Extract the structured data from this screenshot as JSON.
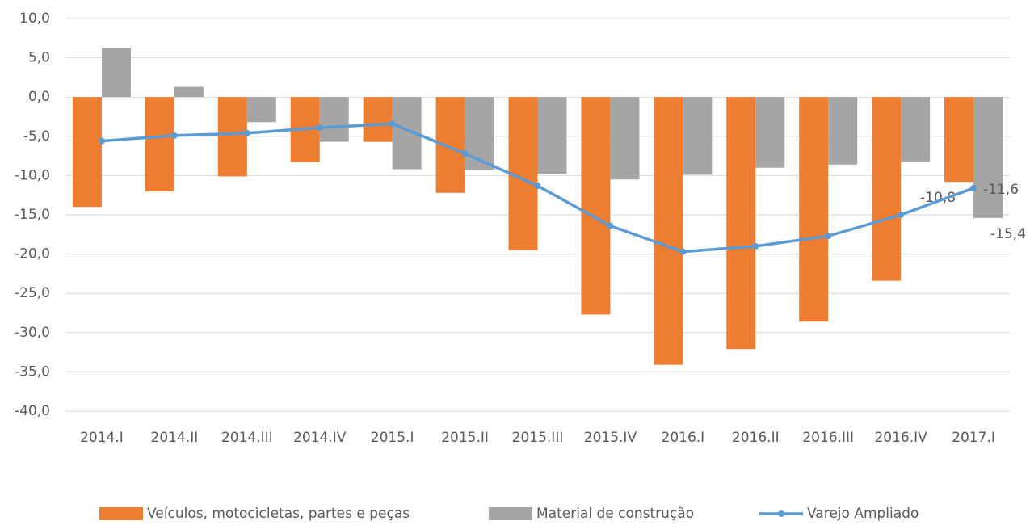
{
  "chart_data": {
    "type": "bar_line",
    "categories": [
      "2014.I",
      "2014.II",
      "2014.III",
      "2014.IV",
      "2015.I",
      "2015.II",
      "2015.III",
      "2015.IV",
      "2016.I",
      "2016.II",
      "2016.III",
      "2016.IV",
      "2017.I"
    ],
    "series": [
      {
        "name": "Veículos, motocicletas, partes e peças",
        "type": "bar",
        "color": "#ed7d31",
        "values": [
          -14.0,
          -12.0,
          -10.1,
          -8.3,
          -5.7,
          -12.2,
          -19.5,
          -27.7,
          -34.1,
          -32.1,
          -28.6,
          -23.4,
          -10.8
        ],
        "value_labels": [
          null,
          null,
          null,
          null,
          null,
          null,
          null,
          null,
          null,
          null,
          null,
          null,
          "-10,8"
        ]
      },
      {
        "name": "Material de construção",
        "type": "bar",
        "color": "#a5a5a5",
        "values": [
          6.2,
          1.3,
          -3.2,
          -5.7,
          -9.2,
          -9.3,
          -9.8,
          -10.5,
          -9.9,
          -9.0,
          -8.6,
          -8.2,
          -15.4
        ],
        "value_labels": [
          null,
          null,
          null,
          null,
          null,
          null,
          null,
          null,
          null,
          null,
          null,
          null,
          "-15,4"
        ]
      },
      {
        "name": "Varejo Ampliado",
        "type": "line",
        "color": "#5b9bd5",
        "values": [
          -5.6,
          -4.9,
          -4.6,
          -3.9,
          -3.4,
          -7.2,
          -11.3,
          -16.4,
          -19.7,
          -19.0,
          -17.7,
          -15.0,
          -11.6
        ],
        "value_labels": [
          null,
          null,
          null,
          null,
          null,
          null,
          null,
          null,
          null,
          null,
          null,
          null,
          "-11,6"
        ]
      }
    ],
    "ylim": [
      -40,
      10
    ],
    "yticks": [
      {
        "value": -40,
        "label": "-40,0"
      },
      {
        "value": -35,
        "label": "-35,0"
      },
      {
        "value": -30,
        "label": "-30,0"
      },
      {
        "value": -25,
        "label": "-25,0"
      },
      {
        "value": -20,
        "label": "-20,0"
      },
      {
        "value": -15,
        "label": "-15,0"
      },
      {
        "value": -10,
        "label": "-10,0"
      },
      {
        "value": -5,
        "label": "-5,0"
      },
      {
        "value": 0,
        "label": "0,0"
      },
      {
        "value": 5,
        "label": "5,0"
      },
      {
        "value": 10,
        "label": "10,0"
      }
    ],
    "grid": true,
    "legend": "bottom"
  }
}
